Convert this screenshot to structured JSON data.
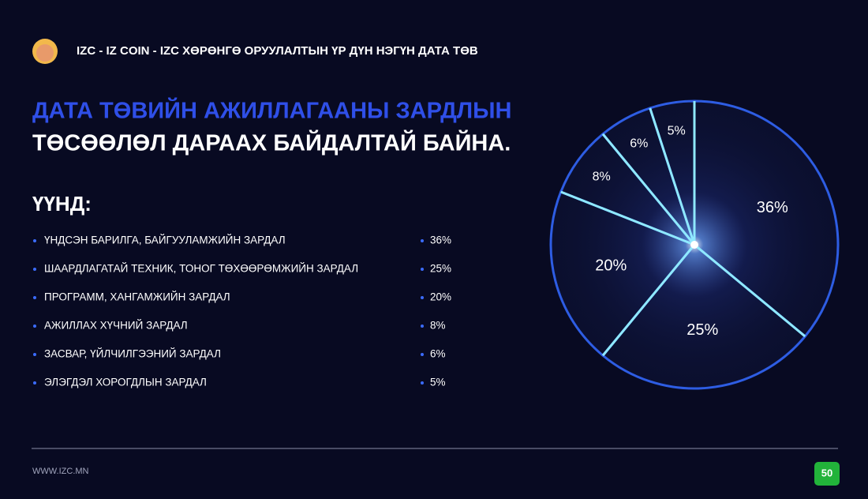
{
  "header": {
    "title": "IZC - IZ COIN - IZC ХӨРӨНГӨ ОРУУЛАЛТЫН ҮР ДҮН НЭГҮН ДАТА ТӨВ"
  },
  "heading": {
    "line1": "ДАТА ТӨВИЙН АЖИЛЛАГААНЫ ЗАРДЛЫН",
    "line2": "ТӨСӨӨЛӨЛ ДАРААХ БАЙДАЛТАЙ БАЙНА."
  },
  "subheading": "ҮҮНД:",
  "chart_data": {
    "type": "pie",
    "categories": [
      "ҮНДСЭН БАРИЛГА, БАЙГУУЛАМЖИЙН ЗАРДАЛ",
      "ШААРДЛАГАТАЙ ТЕХНИК, ТОНОГ ТӨХӨӨРӨМЖИЙН ЗАРДАЛ",
      "ПРОГРАММ, ХАНГАМЖИЙН ЗАРДАЛ",
      "АЖИЛЛАХ ХҮЧНИЙ ЗАРДАЛ",
      "ЗАСВАР, ҮЙЛЧИЛГЭЭНИЙ ЗАРДАЛ",
      "ЭЛЭГДЭЛ ХОРОГДЛЫН ЗАРДАЛ"
    ],
    "values": [
      36,
      25,
      20,
      8,
      6,
      5
    ],
    "value_labels": [
      "36%",
      "25%",
      "20%",
      "8%",
      "6%",
      "5%"
    ],
    "color": "#0b0f2e",
    "edge_color": "#2e5ee6",
    "spoke_color": "#8fe9ff"
  },
  "footer": {
    "url": "WWW.IZC.MN",
    "page": "50"
  }
}
